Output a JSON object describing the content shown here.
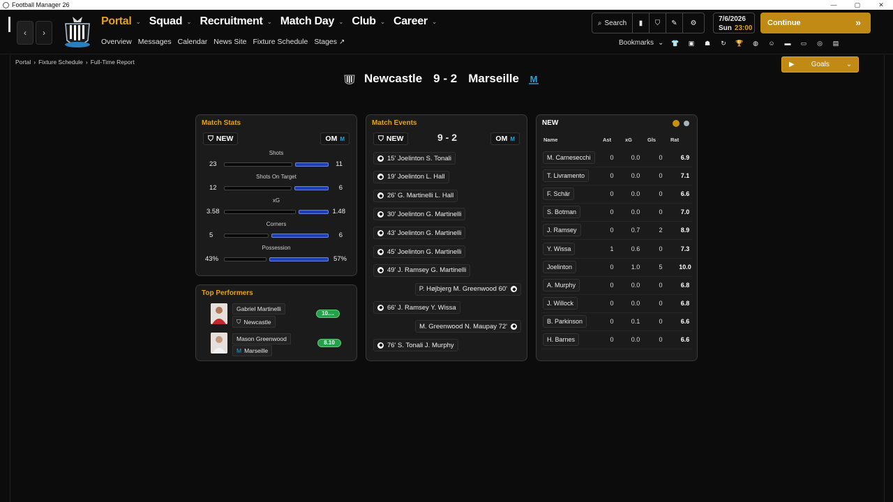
{
  "window": {
    "title": "Football Manager 26"
  },
  "nav": {
    "main": [
      "Portal",
      "Squad",
      "Recruitment",
      "Match Day",
      "Club",
      "Career"
    ],
    "sub": [
      "Overview",
      "Messages",
      "Calendar",
      "News Site",
      "Fixture Schedule",
      "Stages"
    ]
  },
  "toolbar": {
    "search_label": "Search",
    "bookmarks_label": "Bookmarks"
  },
  "date": {
    "date": "7/6/2026",
    "day": "Sun",
    "time": "23:00"
  },
  "continue_label": "Continue",
  "breadcrumb": [
    "Portal",
    "Fixture Schedule",
    "Full-Time Report"
  ],
  "goals_label": "Goals",
  "match": {
    "home_team": "Newcastle",
    "away_team": "Marseille",
    "score": "9 - 2",
    "home_short": "NEW",
    "away_short": "OM"
  },
  "match_stats": {
    "title": "Match Stats",
    "stats": [
      {
        "label": "Shots",
        "home": "23",
        "away": "11",
        "home_frac": 0.68,
        "away_frac": 0.32
      },
      {
        "label": "Shots On Target",
        "home": "12",
        "away": "6",
        "home_frac": 0.67,
        "away_frac": 0.33
      },
      {
        "label": "xG",
        "home": "3.58",
        "away": "1.48",
        "home_frac": 0.71,
        "away_frac": 0.29
      },
      {
        "label": "Corners",
        "home": "5",
        "away": "6",
        "home_frac": 0.45,
        "away_frac": 0.55
      },
      {
        "label": "Possession",
        "home": "43%",
        "away": "57%",
        "home_frac": 0.43,
        "away_frac": 0.57
      }
    ]
  },
  "top_performers": {
    "title": "Top Performers",
    "players": [
      {
        "name": "Gabriel Martinelli",
        "club": "Newcastle",
        "rating": "10...."
      },
      {
        "name": "Mason Greenwood",
        "club": "Marseille",
        "rating": "8.10"
      }
    ]
  },
  "match_events": {
    "title": "Match Events",
    "events": [
      {
        "text": "15' Joelinton S. Tonali",
        "side": "home"
      },
      {
        "text": "19' Joelinton L. Hall",
        "side": "home"
      },
      {
        "text": "26' G. Martinelli L. Hall",
        "side": "home"
      },
      {
        "text": "30' Joelinton G. Martinelli",
        "side": "home"
      },
      {
        "text": "43' Joelinton G. Martinelli",
        "side": "home"
      },
      {
        "text": "45' Joelinton G. Martinelli",
        "side": "home"
      },
      {
        "text": "49' J. Ramsey G. Martinelli",
        "side": "home"
      },
      {
        "text": "P. Højbjerg M. Greenwood 60'",
        "side": "away"
      },
      {
        "text": "66' J. Ramsey Y. Wissa",
        "side": "home"
      },
      {
        "text": "M. Greenwood N. Maupay 72'",
        "side": "away"
      },
      {
        "text": "76' S. Tonali J. Murphy",
        "side": "home"
      }
    ]
  },
  "players_panel": {
    "title": "NEW",
    "dot_colors": [
      "#c8900e",
      "#a8b4bc"
    ],
    "columns": [
      "Name",
      "Ast",
      "xG",
      "Gls",
      "Rat"
    ],
    "rows": [
      {
        "name": "M. Carnesecchi",
        "ast": "0",
        "xg": "0.0",
        "gls": "0",
        "rat": "6.9"
      },
      {
        "name": "T. Livramento",
        "ast": "0",
        "xg": "0.0",
        "gls": "0",
        "rat": "7.1"
      },
      {
        "name": "F. Schär",
        "ast": "0",
        "xg": "0.0",
        "gls": "0",
        "rat": "6.6"
      },
      {
        "name": "S. Botman",
        "ast": "0",
        "xg": "0.0",
        "gls": "0",
        "rat": "7.0"
      },
      {
        "name": "J. Ramsey",
        "ast": "0",
        "xg": "0.7",
        "gls": "2",
        "rat": "8.9"
      },
      {
        "name": "Y. Wissa",
        "ast": "1",
        "xg": "0.6",
        "gls": "0",
        "rat": "7.3"
      },
      {
        "name": "Joelinton",
        "ast": "0",
        "xg": "1.0",
        "gls": "5",
        "rat": "10.0"
      },
      {
        "name": "A. Murphy",
        "ast": "0",
        "xg": "0.0",
        "gls": "0",
        "rat": "6.8"
      },
      {
        "name": "J. Willock",
        "ast": "0",
        "xg": "0.0",
        "gls": "0",
        "rat": "6.8"
      },
      {
        "name": "B. Parkinson",
        "ast": "0",
        "xg": "0.1",
        "gls": "0",
        "rat": "6.6"
      },
      {
        "name": "H. Barnes",
        "ast": "0",
        "xg": "0.0",
        "gls": "0",
        "rat": "6.6"
      }
    ]
  },
  "colors": {
    "accent": "#e3a11c",
    "bar_blue": "#1c3eb8",
    "rating_green": "#25a14a"
  }
}
